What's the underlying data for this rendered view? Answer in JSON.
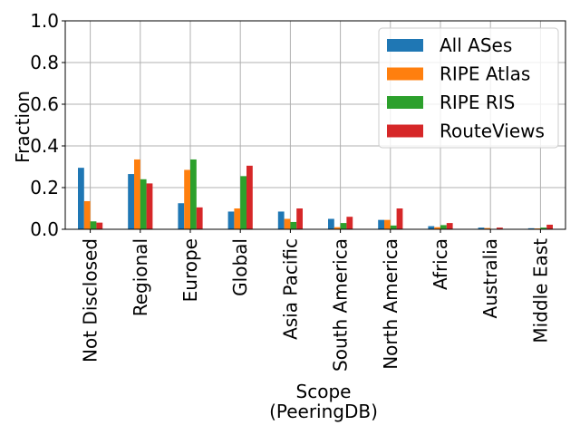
{
  "chart_data": {
    "type": "bar",
    "xlabel": "Scope\n(PeeringDB)",
    "ylabel": "Fraction",
    "ylim": [
      0,
      1.0
    ],
    "yticks": [
      "0.0",
      "0.2",
      "0.4",
      "0.6",
      "0.8",
      "1.0"
    ],
    "grid": true,
    "legend_position": "top-right",
    "categories": [
      "Not Disclosed",
      "Regional",
      "Europe",
      "Global",
      "Asia Pacific",
      "South America",
      "North America",
      "Africa",
      "Australia",
      "Middle East"
    ],
    "series": [
      {
        "name": "All ASes",
        "color": "#1f77b4",
        "values": [
          0.295,
          0.265,
          0.125,
          0.085,
          0.085,
          0.05,
          0.045,
          0.015,
          0.008,
          0.005
        ]
      },
      {
        "name": "RIPE Atlas",
        "color": "#ff7f0e",
        "values": [
          0.135,
          0.335,
          0.285,
          0.1,
          0.05,
          0.01,
          0.045,
          0.01,
          0.006,
          0.004
        ]
      },
      {
        "name": "RIPE RIS",
        "color": "#2ca02c",
        "values": [
          0.038,
          0.24,
          0.335,
          0.255,
          0.035,
          0.03,
          0.018,
          0.02,
          0.002,
          0.008
        ]
      },
      {
        "name": "RouteViews",
        "color": "#d62728",
        "values": [
          0.032,
          0.22,
          0.105,
          0.305,
          0.1,
          0.06,
          0.1,
          0.03,
          0.008,
          0.022
        ]
      }
    ]
  }
}
